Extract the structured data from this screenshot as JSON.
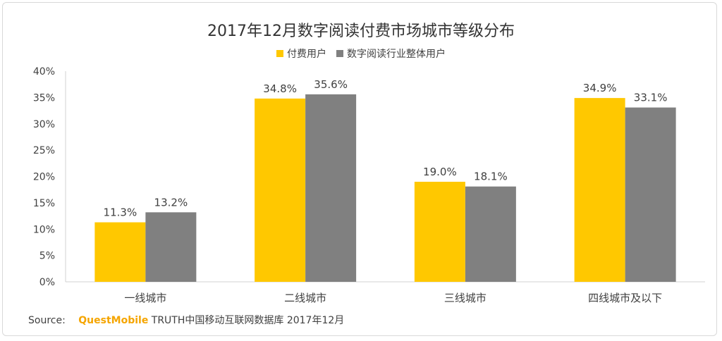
{
  "colors": {
    "paid": "#ffc800",
    "overall": "#808080",
    "axis": "#d0d0d0",
    "text": "#404040",
    "brand": "#f5a500"
  },
  "source": {
    "label": "Source:",
    "brand": "QuestMobile",
    "rest": "TRUTH中国移动互联网数据库 2017年12月"
  },
  "chart_data": {
    "type": "bar",
    "title": "2017年12月数字阅读付费市场城市等级分布",
    "categories": [
      "一线城市",
      "二线城市",
      "三线城市",
      "四线城市及以下"
    ],
    "series": [
      {
        "name": "付费用户",
        "values": [
          11.3,
          34.8,
          19.0,
          34.9
        ],
        "labels": [
          "11.3%",
          "34.8%",
          "19.0%",
          "34.9%"
        ]
      },
      {
        "name": "数字阅读行业整体用户",
        "values": [
          13.2,
          35.6,
          18.1,
          33.1
        ],
        "labels": [
          "13.2%",
          "35.6%",
          "18.1%",
          "33.1%"
        ]
      }
    ],
    "ylim": [
      0,
      40
    ],
    "yticks": [
      "0%",
      "5%",
      "10%",
      "15%",
      "20%",
      "25%",
      "30%",
      "35%",
      "40%"
    ],
    "grid": false,
    "legend": "top-center"
  }
}
